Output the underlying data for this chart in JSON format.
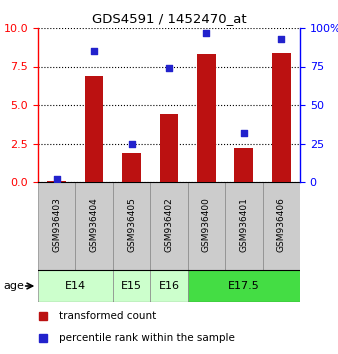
{
  "title": "GDS4591 / 1452470_at",
  "samples": [
    "GSM936403",
    "GSM936404",
    "GSM936405",
    "GSM936402",
    "GSM936400",
    "GSM936401",
    "GSM936406"
  ],
  "transformed_count": [
    0.05,
    6.9,
    1.9,
    4.4,
    8.3,
    2.2,
    8.4
  ],
  "percentile_rank": [
    2,
    85,
    25,
    74,
    97,
    32,
    93
  ],
  "age_groups": [
    {
      "label": "E14",
      "start": 0,
      "end": 2,
      "color": "#ccffcc"
    },
    {
      "label": "E15",
      "start": 2,
      "end": 3,
      "color": "#ccffcc"
    },
    {
      "label": "E16",
      "start": 3,
      "end": 4,
      "color": "#ccffcc"
    },
    {
      "label": "E17.5",
      "start": 4,
      "end": 7,
      "color": "#44dd44"
    }
  ],
  "ylim_left": [
    0,
    10
  ],
  "ylim_right": [
    0,
    100
  ],
  "yticks_left": [
    0,
    2.5,
    5,
    7.5,
    10
  ],
  "yticks_right": [
    0,
    25,
    50,
    75,
    100
  ],
  "bar_color": "#bb1111",
  "dot_color": "#2222cc",
  "bar_width": 0.5,
  "legend_items": [
    {
      "label": "transformed count",
      "color": "#bb1111"
    },
    {
      "label": "percentile rank within the sample",
      "color": "#2222cc"
    }
  ]
}
